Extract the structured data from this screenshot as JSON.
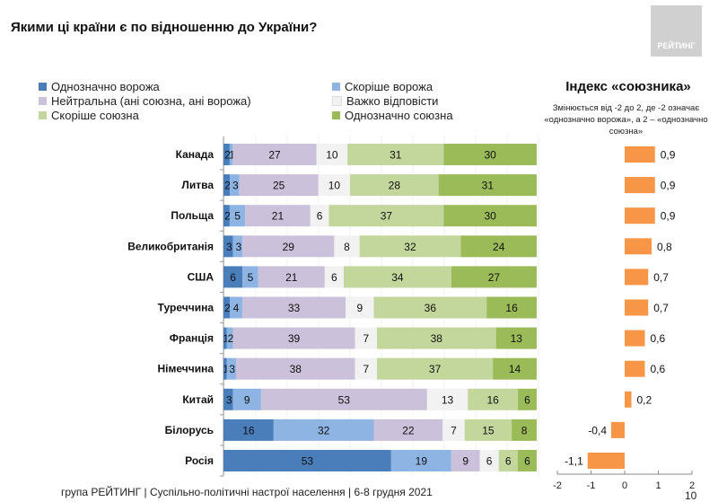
{
  "title": "Якими ці країни є по відношенню до України?",
  "logo_text": "РЕЙТИНГ",
  "footer": "група РЕЙТИНГ | Суспільно-політичні настрої населення  | 6-8 грудня 2021",
  "page_number": "10",
  "chart_data": [
    {
      "type": "bar",
      "orientation": "horizontal",
      "stacked": true,
      "categories": [
        "Канада",
        "Литва",
        "Польща",
        "Великобританія",
        "США",
        "Туреччина",
        "Франція",
        "Німеччина",
        "Китай",
        "Білорусь",
        "Росія"
      ],
      "legend_placement": "top",
      "series": [
        {
          "name": "Однозначно ворожа",
          "color": "#4a7ebb",
          "values": [
            2,
            2,
            2,
            3,
            6,
            2,
            1,
            1,
            3,
            16,
            53
          ]
        },
        {
          "name": "Скоріше ворожа",
          "color": "#8db4e2",
          "values": [
            1,
            3,
            5,
            3,
            5,
            4,
            2,
            3,
            9,
            32,
            19
          ]
        },
        {
          "name": "Нейтральна (ані союзна, ані ворожа)",
          "color": "#ccc1da",
          "values": [
            27,
            25,
            21,
            29,
            21,
            33,
            39,
            38,
            53,
            22,
            9
          ]
        },
        {
          "name": "Важко відповісти",
          "color": "#f2f2f2",
          "values": [
            10,
            10,
            6,
            8,
            6,
            9,
            7,
            7,
            13,
            7,
            6
          ]
        },
        {
          "name": "Скоріше союзна",
          "color": "#c3d69b",
          "values": [
            31,
            28,
            37,
            32,
            34,
            36,
            38,
            37,
            16,
            15,
            6
          ]
        },
        {
          "name": "Однозначно союзна",
          "color": "#9bbb59",
          "values": [
            30,
            31,
            30,
            24,
            27,
            16,
            13,
            14,
            6,
            8,
            6
          ]
        }
      ]
    },
    {
      "type": "bar",
      "orientation": "horizontal",
      "title": "Індекс «союзника»",
      "subtitle": "Змінюється від -2 до 2, де -2 означає «однозначно ворожа», а 2 – «однозначно союзна»",
      "color": "#f79646",
      "categories": [
        "Канада",
        "Литва",
        "Польща",
        "Великобританія",
        "США",
        "Туреччина",
        "Франція",
        "Німеччина",
        "Китай",
        "Білорусь",
        "Росія"
      ],
      "values": [
        0.9,
        0.9,
        0.9,
        0.8,
        0.7,
        0.7,
        0.6,
        0.6,
        0.2,
        -0.4,
        -1.1
      ],
      "value_labels": [
        "0,9",
        "0,9",
        "0,9",
        "0,8",
        "0,7",
        "0,7",
        "0,6",
        "0,6",
        "0,2",
        "-0,4",
        "-1,1"
      ],
      "xlim": [
        -2,
        2
      ],
      "xticks": [
        "-2",
        "-1",
        "0",
        "1",
        "2"
      ]
    }
  ]
}
